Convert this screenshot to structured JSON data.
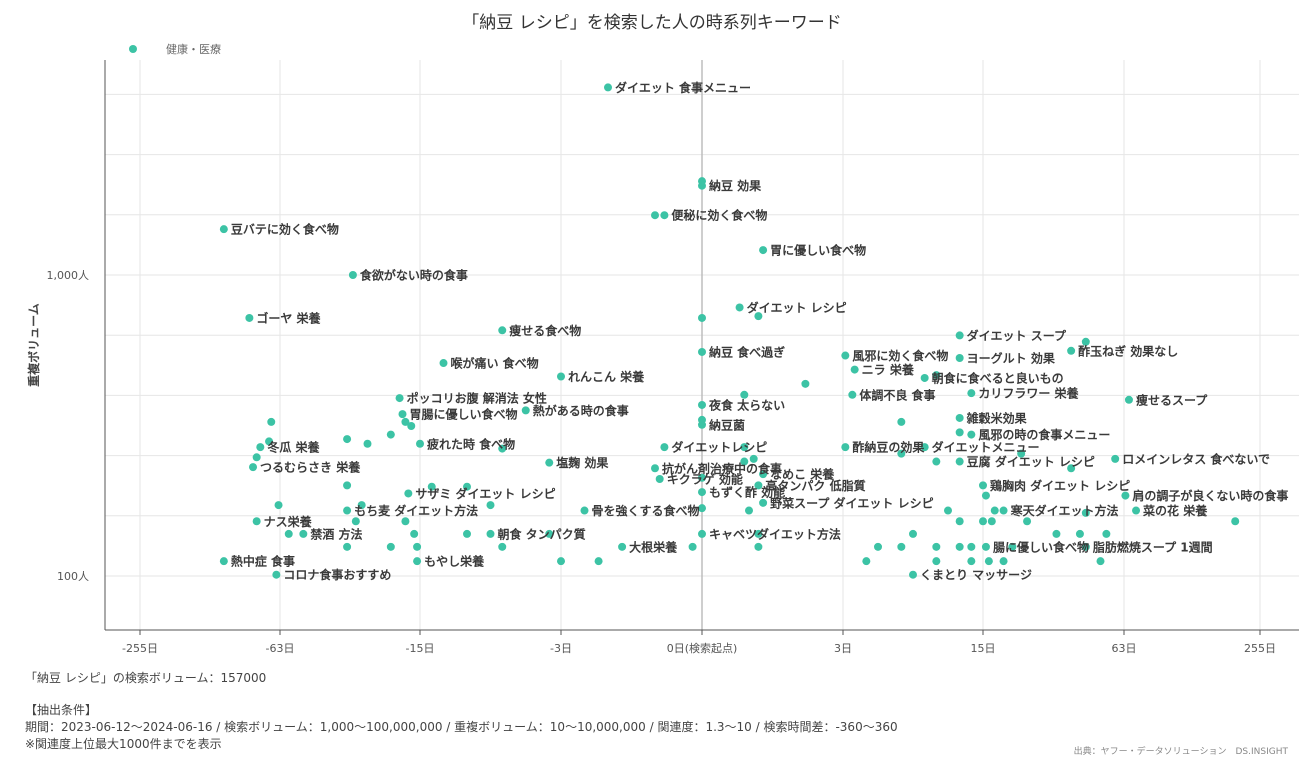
{
  "chart_data": {
    "type": "scatter",
    "title": "「納豆 レシピ」を検索した人の時系列キーワード",
    "xlabel": "",
    "ylabel": "重複ボリューム",
    "legend": {
      "items": [
        {
          "name": "健康・医療",
          "color": "#3cc3a5"
        }
      ],
      "position": "top-left"
    },
    "x_scale": "symlog-days",
    "x_ticks": [
      {
        "value": -255,
        "label": "-255日"
      },
      {
        "value": -63,
        "label": "-63日"
      },
      {
        "value": -15,
        "label": "-15日"
      },
      {
        "value": -3,
        "label": "-3日"
      },
      {
        "value": 0,
        "label": "0日(検索起点)"
      },
      {
        "value": 3,
        "label": "3日"
      },
      {
        "value": 15,
        "label": "15日"
      },
      {
        "value": 63,
        "label": "63日"
      },
      {
        "value": 255,
        "label": "255日"
      }
    ],
    "y_scale": "log",
    "y_ticks": [
      {
        "value": 100,
        "label": "100人"
      },
      {
        "value": 1000,
        "label": "1,000人"
      }
    ],
    "ylim": [
      60,
      7000
    ],
    "grid": true,
    "series": [
      {
        "name": "健康・医療",
        "color": "#3cc3a5",
        "points": [
          {
            "x": -2,
            "y": 4200,
            "label": "ダイエット 食事メニュー"
          },
          {
            "x": 0,
            "y": 2050
          },
          {
            "x": 0,
            "y": 1980,
            "label": "納豆 効果"
          },
          {
            "x": -1,
            "y": 1580
          },
          {
            "x": -0.8,
            "y": 1580,
            "label": "便秘に効く食べ物"
          },
          {
            "x": -140,
            "y": 1420,
            "label": "豆バテに効く食べ物"
          },
          {
            "x": 1.3,
            "y": 1210,
            "label": "胃に優しい食べ物"
          },
          {
            "x": -38,
            "y": 1000,
            "label": "食欲がない時の食事"
          },
          {
            "x": -105,
            "y": 720,
            "label": "ゴーヤ 栄養"
          },
          {
            "x": 0.8,
            "y": 780,
            "label": "ダイエット レシピ"
          },
          {
            "x": 1.2,
            "y": 730
          },
          {
            "x": 0,
            "y": 720
          },
          {
            "x": -8,
            "y": 655,
            "label": "痩せる食べ物"
          },
          {
            "x": 13,
            "y": 630,
            "label": "ダイエット スープ"
          },
          {
            "x": 50,
            "y": 600
          },
          {
            "x": 45,
            "y": 560,
            "label": "酢玉ねぎ 効果なし"
          },
          {
            "x": 0,
            "y": 555,
            "label": "納豆 食べ過ぎ"
          },
          {
            "x": 3.2,
            "y": 540,
            "label": "風邪に効く食べ物"
          },
          {
            "x": 13,
            "y": 530,
            "label": "ヨーグルト 効果"
          },
          {
            "x": -13,
            "y": 510,
            "label": "喉が痛い 食べ物"
          },
          {
            "x": 4,
            "y": 485,
            "label": "ニラ 栄養"
          },
          {
            "x": 11,
            "y": 465
          },
          {
            "x": 10,
            "y": 455,
            "label": "朝食に食べると良いもの"
          },
          {
            "x": -3,
            "y": 460,
            "label": "れんこん 栄養"
          },
          {
            "x": 2.2,
            "y": 435
          },
          {
            "x": 14,
            "y": 405,
            "label": "カリフラワー 栄養"
          },
          {
            "x": 3.8,
            "y": 400,
            "label": "体調不良 食事"
          },
          {
            "x": 0.9,
            "y": 400
          },
          {
            "x": -22,
            "y": 390,
            "label": "ポッコリお腹 解消法 女性"
          },
          {
            "x": 70,
            "y": 385,
            "label": "痩せるスープ"
          },
          {
            "x": 0,
            "y": 370,
            "label": "夜食 太らない"
          },
          {
            "x": -21,
            "y": 345,
            "label": "胃腸に優しい食べ物"
          },
          {
            "x": -6,
            "y": 355,
            "label": "熱がある時の食事"
          },
          {
            "x": 13,
            "y": 335,
            "label": "雑穀米効果"
          },
          {
            "x": 0,
            "y": 330
          },
          {
            "x": -75,
            "y": 325
          },
          {
            "x": -20,
            "y": 325
          },
          {
            "x": -18,
            "y": 315
          },
          {
            "x": 8,
            "y": 325
          },
          {
            "x": 0,
            "y": 318,
            "label": "納豆菌"
          },
          {
            "x": 13,
            "y": 300
          },
          {
            "x": 14,
            "y": 295,
            "label": "風邪の時の食事メニュー"
          },
          {
            "x": -25,
            "y": 295
          },
          {
            "x": -40,
            "y": 285
          },
          {
            "x": -78,
            "y": 280
          },
          {
            "x": -33,
            "y": 275
          },
          {
            "x": -15,
            "y": 275,
            "label": "疲れた時 食べ物"
          },
          {
            "x": -8,
            "y": 265
          },
          {
            "x": -90,
            "y": 268,
            "label": "冬瓜 栄養"
          },
          {
            "x": -0.8,
            "y": 268,
            "label": "ダイエットレシピ"
          },
          {
            "x": 0.9,
            "y": 268
          },
          {
            "x": 3.2,
            "y": 268,
            "label": "酢納豆の効果"
          },
          {
            "x": 10,
            "y": 268,
            "label": "ダイエットメニュー"
          },
          {
            "x": 28,
            "y": 255
          },
          {
            "x": 8,
            "y": 255
          },
          {
            "x": -95,
            "y": 248
          },
          {
            "x": 1.1,
            "y": 245
          },
          {
            "x": 0.9,
            "y": 240
          },
          {
            "x": 11,
            "y": 240
          },
          {
            "x": 13,
            "y": 240,
            "label": "豆腐 ダイエット レシピ"
          },
          {
            "x": 60,
            "y": 245,
            "label": "ロメインレタス 食べないで"
          },
          {
            "x": -4,
            "y": 238,
            "label": "塩麹 効果"
          },
          {
            "x": -100,
            "y": 230,
            "label": "つるむらさき 栄養"
          },
          {
            "x": -1,
            "y": 228,
            "label": "抗がん剤治療中の食事"
          },
          {
            "x": 45,
            "y": 228
          },
          {
            "x": 1.3,
            "y": 218,
            "label": "なめこ 栄養"
          },
          {
            "x": -0.9,
            "y": 210,
            "label": "キクラゲ 効能"
          },
          {
            "x": 0,
            "y": 212
          },
          {
            "x": 1.2,
            "y": 200,
            "label": "高タンパク 低脂質"
          },
          {
            "x": 15,
            "y": 200,
            "label": "鶏胸肉 ダイエット レシピ"
          },
          {
            "x": -14,
            "y": 198
          },
          {
            "x": -11,
            "y": 198
          },
          {
            "x": -40,
            "y": 200
          },
          {
            "x": 0,
            "y": 190,
            "label": "もずく酢 効能"
          },
          {
            "x": 65,
            "y": 185,
            "label": "肩の調子が良くない時の食事"
          },
          {
            "x": 16,
            "y": 185
          },
          {
            "x": -19,
            "y": 188,
            "label": "サザミ ダイエット レシピ"
          },
          {
            "x": 1.3,
            "y": 175,
            "label": "野菜スープ ダイエット レシピ"
          },
          {
            "x": -65,
            "y": 172
          },
          {
            "x": -35,
            "y": 172
          },
          {
            "x": -9,
            "y": 172
          },
          {
            "x": -40,
            "y": 165,
            "label": "もち麦 ダイエット方法"
          },
          {
            "x": -2.5,
            "y": 165,
            "label": "骨を強くする食べ物"
          },
          {
            "x": 0,
            "y": 168
          },
          {
            "x": 1.0,
            "y": 165
          },
          {
            "x": 12,
            "y": 165
          },
          {
            "x": 19,
            "y": 165
          },
          {
            "x": 22,
            "y": 165,
            "label": "寒天ダイエット方法"
          },
          {
            "x": 80,
            "y": 165,
            "label": "菜の花 栄養"
          },
          {
            "x": 50,
            "y": 162
          },
          {
            "x": -37,
            "y": 152
          },
          {
            "x": -20,
            "y": 152
          },
          {
            "x": 13,
            "y": 152
          },
          {
            "x": 15,
            "y": 152
          },
          {
            "x": 18,
            "y": 152
          },
          {
            "x": 30,
            "y": 152
          },
          {
            "x": 220,
            "y": 152
          },
          {
            "x": -95,
            "y": 152,
            "label": "ナス栄養"
          },
          {
            "x": -55,
            "y": 138,
            "label": "禁酒 方法"
          },
          {
            "x": -60,
            "y": 138
          },
          {
            "x": -17,
            "y": 138
          },
          {
            "x": -11,
            "y": 138
          },
          {
            "x": -9,
            "y": 138,
            "label": "朝食 タンパク質"
          },
          {
            "x": -4,
            "y": 138
          },
          {
            "x": 0,
            "y": 138,
            "label": "キャベツダイエット方法"
          },
          {
            "x": 1.2,
            "y": 138
          },
          {
            "x": 9,
            "y": 138
          },
          {
            "x": 40,
            "y": 138
          },
          {
            "x": 48,
            "y": 138
          },
          {
            "x": 57,
            "y": 138
          },
          {
            "x": -16,
            "y": 125
          },
          {
            "x": -8,
            "y": 125
          },
          {
            "x": -40,
            "y": 125
          },
          {
            "x": -25,
            "y": 125
          },
          {
            "x": -1.7,
            "y": 125,
            "label": "大根栄養"
          },
          {
            "x": -0.2,
            "y": 125
          },
          {
            "x": 1.2,
            "y": 125
          },
          {
            "x": 6,
            "y": 125
          },
          {
            "x": 8,
            "y": 125
          },
          {
            "x": 11,
            "y": 125
          },
          {
            "x": 13,
            "y": 125
          },
          {
            "x": 14,
            "y": 125
          },
          {
            "x": 16,
            "y": 125,
            "label": "腸に優しい食べ物"
          },
          {
            "x": 50,
            "y": 125,
            "label": "脂肪燃焼スープ 1週間"
          },
          {
            "x": 25,
            "y": 125
          },
          {
            "x": -140,
            "y": 112,
            "label": "熱中症 食事"
          },
          {
            "x": -16,
            "y": 112,
            "label": "もやし栄養"
          },
          {
            "x": -3,
            "y": 112
          },
          {
            "x": -2.2,
            "y": 112
          },
          {
            "x": 5,
            "y": 112
          },
          {
            "x": 11,
            "y": 112
          },
          {
            "x": 14,
            "y": 112
          },
          {
            "x": 17,
            "y": 112
          },
          {
            "x": 22,
            "y": 112
          },
          {
            "x": 55,
            "y": 112
          },
          {
            "x": -68,
            "y": 101,
            "label": "コロナ食事おすすめ"
          },
          {
            "x": 9,
            "y": 101,
            "label": "くまとり マッサージ"
          }
        ]
      }
    ]
  },
  "footer": {
    "search_volume": "「納豆 レシピ」の検索ボリューム：157000",
    "conditions_heading": "【抽出条件】",
    "conditions": "期間：2023-06-12～2024-06-16 / 検索ボリューム：1,000～100,000,000 / 重複ボリューム：10～10,000,000 / 関連度：1.3～10 / 検索時間差：-360～360",
    "note": "※関連度上位最大1000件までを表示",
    "source": "出典：ヤフー・データソリューション　DS.INSIGHT"
  }
}
